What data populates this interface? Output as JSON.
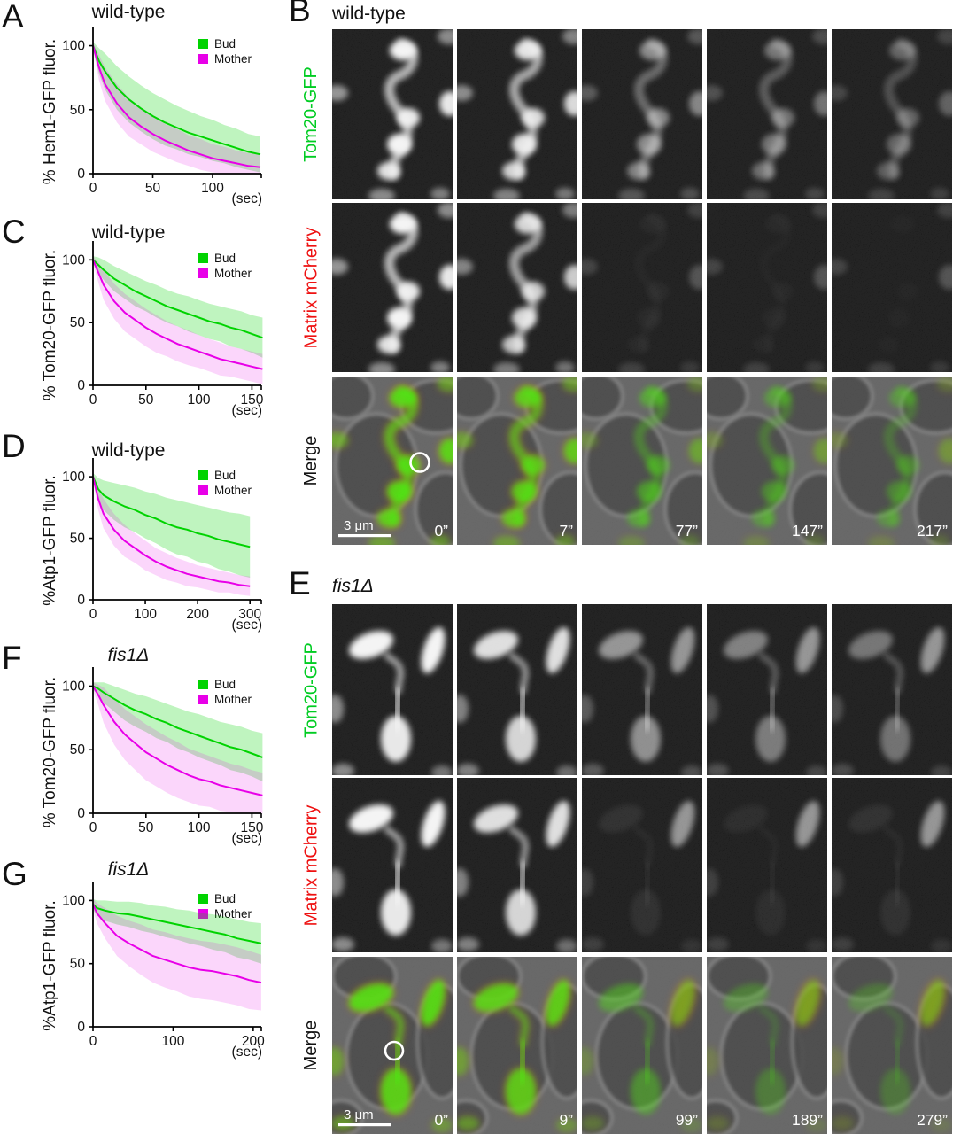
{
  "colors": {
    "bud_green": "#00d300",
    "mother_magenta": "#e800e8",
    "gfp_label_green": "#00cc22",
    "mcherry_label_red": "#ee1111",
    "merge_label_black": "#111111",
    "annotation_white": "#ffffff"
  },
  "chart_data": [
    {
      "id": "A",
      "letter": "A",
      "type": "line",
      "title": "wild-type",
      "title_italic": false,
      "ylabel": "% Hem1-GFP fluor.",
      "xunit": "(sec)",
      "xlim": [
        0,
        140
      ],
      "ylim": [
        0,
        108
      ],
      "xticks": [
        0,
        50,
        100
      ],
      "yticks": [
        0,
        50,
        100
      ],
      "grid": false,
      "legend_position": "top-right",
      "x": [
        0,
        5,
        10,
        20,
        30,
        40,
        50,
        60,
        70,
        80,
        90,
        100,
        110,
        120,
        130,
        140
      ],
      "series": [
        {
          "name": "Bud",
          "color": "#00d300",
          "values": [
            100,
            88,
            80,
            67,
            58,
            51,
            45,
            40,
            36,
            32,
            29,
            26,
            23,
            20,
            17,
            15
          ],
          "band": [
            3,
            10,
            14,
            17,
            18,
            18,
            18,
            18,
            17,
            17,
            16,
            16,
            15,
            15,
            14,
            14
          ]
        },
        {
          "name": "Mother",
          "color": "#e800e8",
          "values": [
            100,
            83,
            70,
            55,
            44,
            37,
            31,
            26,
            22,
            18,
            15,
            12,
            10,
            8,
            6,
            5
          ],
          "band": [
            3,
            10,
            13,
            15,
            15,
            14,
            14,
            13,
            13,
            12,
            12,
            11,
            11,
            10,
            10,
            10
          ]
        }
      ]
    },
    {
      "id": "C",
      "letter": "C",
      "type": "line",
      "title": "wild-type",
      "title_italic": false,
      "ylabel": "% Tom20-GFP fluor.",
      "xunit": "(sec)",
      "xlim": [
        0,
        158
      ],
      "ylim": [
        0,
        108
      ],
      "xticks": [
        0,
        50,
        100,
        150
      ],
      "yticks": [
        0,
        50,
        100
      ],
      "grid": false,
      "legend_position": "top-right",
      "x": [
        0,
        5,
        10,
        20,
        30,
        40,
        50,
        60,
        70,
        80,
        90,
        100,
        110,
        120,
        130,
        140,
        150,
        160
      ],
      "series": [
        {
          "name": "Bud",
          "color": "#00d300",
          "values": [
            100,
            96,
            92,
            85,
            80,
            75,
            71,
            67,
            63,
            60,
            57,
            54,
            51,
            49,
            46,
            44,
            41,
            38
          ],
          "band": [
            3,
            6,
            8,
            10,
            11,
            12,
            12,
            13,
            13,
            13,
            14,
            14,
            14,
            14,
            15,
            15,
            15,
            16
          ]
        },
        {
          "name": "Mother",
          "color": "#e800e8",
          "values": [
            100,
            90,
            80,
            67,
            58,
            52,
            46,
            41,
            37,
            33,
            30,
            27,
            24,
            21,
            19,
            17,
            15,
            13
          ],
          "band": [
            3,
            8,
            12,
            14,
            15,
            15,
            15,
            15,
            14,
            14,
            14,
            13,
            13,
            13,
            12,
            12,
            12,
            12
          ]
        }
      ]
    },
    {
      "id": "D",
      "letter": "D",
      "type": "line",
      "title": "wild-type",
      "title_italic": false,
      "ylabel": "%Atp1-GFP fluor.",
      "xunit": "(sec)",
      "xlim": [
        0,
        320
      ],
      "ylim": [
        0,
        108
      ],
      "xticks": [
        0,
        100,
        200,
        300
      ],
      "yticks": [
        0,
        50,
        100
      ],
      "grid": false,
      "legend_position": "top-right",
      "x": [
        0,
        10,
        20,
        40,
        60,
        80,
        100,
        120,
        140,
        160,
        180,
        200,
        220,
        240,
        260,
        280,
        300
      ],
      "series": [
        {
          "name": "Bud",
          "color": "#00d300",
          "values": [
            100,
            90,
            85,
            80,
            76,
            73,
            69,
            66,
            62,
            59,
            57,
            54,
            52,
            49,
            47,
            45,
            43
          ],
          "band": [
            3,
            9,
            12,
            15,
            17,
            18,
            19,
            20,
            21,
            22,
            22,
            23,
            23,
            24,
            24,
            25,
            25
          ]
        },
        {
          "name": "Mother",
          "color": "#e800e8",
          "values": [
            100,
            82,
            70,
            57,
            48,
            42,
            36,
            31,
            27,
            24,
            21,
            19,
            17,
            15,
            14,
            12,
            11
          ],
          "band": [
            3,
            9,
            12,
            13,
            13,
            12,
            12,
            11,
            11,
            10,
            10,
            9,
            9,
            9,
            8,
            8,
            8
          ]
        }
      ]
    },
    {
      "id": "F",
      "letter": "F",
      "type": "line",
      "title": "fis1Δ",
      "title_italic": true,
      "ylabel": "% Tom20-GFP fluor.",
      "xunit": "(sec)",
      "xlim": [
        0,
        158
      ],
      "ylim": [
        0,
        108
      ],
      "xticks": [
        0,
        50,
        100,
        150
      ],
      "yticks": [
        0,
        50,
        100
      ],
      "grid": false,
      "legend_position": "top-right",
      "x": [
        0,
        5,
        10,
        20,
        30,
        40,
        50,
        60,
        70,
        80,
        90,
        100,
        110,
        120,
        130,
        140,
        150,
        160
      ],
      "series": [
        {
          "name": "Bud",
          "color": "#00d300",
          "values": [
            100,
            98,
            95,
            90,
            85,
            81,
            78,
            74,
            71,
            67,
            64,
            61,
            58,
            55,
            52,
            50,
            47,
            44
          ],
          "band": [
            3,
            5,
            8,
            10,
            12,
            13,
            14,
            15,
            15,
            16,
            16,
            17,
            17,
            17,
            18,
            18,
            18,
            19
          ]
        },
        {
          "name": "Mother",
          "color": "#e800e8",
          "values": [
            100,
            93,
            85,
            72,
            62,
            55,
            48,
            43,
            38,
            34,
            30,
            27,
            25,
            22,
            20,
            18,
            16,
            14
          ],
          "band": [
            3,
            8,
            14,
            18,
            20,
            21,
            22,
            22,
            22,
            22,
            21,
            21,
            20,
            20,
            19,
            19,
            18,
            18
          ]
        }
      ]
    },
    {
      "id": "G",
      "letter": "G",
      "type": "line",
      "title": "fis1Δ",
      "title_italic": true,
      "ylabel": "%Atp1-GFP fluor.",
      "xunit": "(sec)",
      "xlim": [
        0,
        209
      ],
      "ylim": [
        0,
        108
      ],
      "xticks": [
        0,
        100,
        200
      ],
      "yticks": [
        0,
        50,
        100
      ],
      "grid": false,
      "legend_position": "top-right",
      "x": [
        0,
        5,
        15,
        30,
        45,
        60,
        75,
        90,
        105,
        120,
        135,
        150,
        165,
        180,
        195,
        210
      ],
      "series": [
        {
          "name": "Bud",
          "color": "#00d300",
          "values": [
            97,
            94,
            92,
            90,
            89,
            87,
            85,
            83,
            81,
            79,
            77,
            75,
            73,
            70,
            68,
            66
          ],
          "band": [
            4,
            6,
            8,
            9,
            10,
            11,
            11,
            12,
            12,
            13,
            13,
            14,
            14,
            15,
            15,
            16
          ]
        },
        {
          "name": "Mother",
          "color": "#e800e8",
          "values": [
            97,
            90,
            82,
            72,
            66,
            61,
            56,
            53,
            50,
            47,
            45,
            44,
            42,
            40,
            37,
            35
          ],
          "band": [
            4,
            8,
            12,
            16,
            18,
            20,
            21,
            22,
            22,
            23,
            23,
            23,
            23,
            23,
            23,
            22
          ]
        }
      ]
    }
  ],
  "micro_panels": [
    {
      "letter": "B",
      "title": "wild-type",
      "title_italic": false,
      "row_labels": [
        {
          "text": "Tom20-GFP",
          "color": "#00cc22"
        },
        {
          "text": "Matrix mCherry",
          "color": "#ee1111"
        },
        {
          "text": "Merge",
          "color": "#111111"
        }
      ],
      "timestamps": [
        "0”",
        "7”",
        "77”",
        "147”",
        "217”"
      ],
      "scale_bar_label": "3 μm"
    },
    {
      "letter": "E",
      "title": "fis1Δ",
      "title_italic": true,
      "row_labels": [
        {
          "text": "Tom20-GFP",
          "color": "#00cc22"
        },
        {
          "text": "Matrix mCherry",
          "color": "#ee1111"
        },
        {
          "text": "Merge",
          "color": "#111111"
        }
      ],
      "timestamps": [
        "0”",
        "9”",
        "99”",
        "189”",
        "279”"
      ],
      "scale_bar_label": "3 μm"
    }
  ]
}
